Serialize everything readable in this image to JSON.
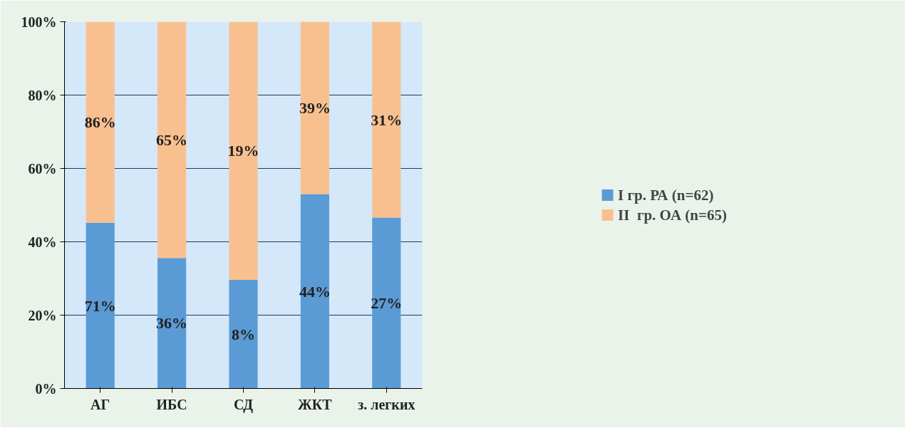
{
  "chart_data": {
    "type": "bar",
    "stacked": true,
    "categories": [
      "АГ",
      "ИБС",
      "СД",
      "ЖКТ",
      "з. легких"
    ],
    "series": [
      {
        "name": "I гр. РА (n=62)",
        "color": "#5b9bd5",
        "values": [
          45.2,
          35.6,
          29.6,
          53.0,
          46.6
        ]
      },
      {
        "name": "II  гр. ОА (n=65)",
        "color": "#f9c08f",
        "values": [
          54.8,
          64.4,
          70.4,
          47.0,
          53.4
        ]
      }
    ],
    "annotations": [
      "71%",
      "86%",
      "36%",
      "65%",
      "8%",
      "19%",
      "44%",
      "39%",
      "27%",
      "31%"
    ],
    "ylim": [
      0,
      100
    ],
    "yticks": [
      {
        "value": 0,
        "label": "0%"
      },
      {
        "value": 20,
        "label": "20%"
      },
      {
        "value": 40,
        "label": "40%"
      },
      {
        "value": 60,
        "label": "60%"
      },
      {
        "value": 80,
        "label": "80%"
      },
      {
        "value": 100,
        "label": "100%"
      }
    ],
    "grid": "y",
    "legend": "right"
  }
}
